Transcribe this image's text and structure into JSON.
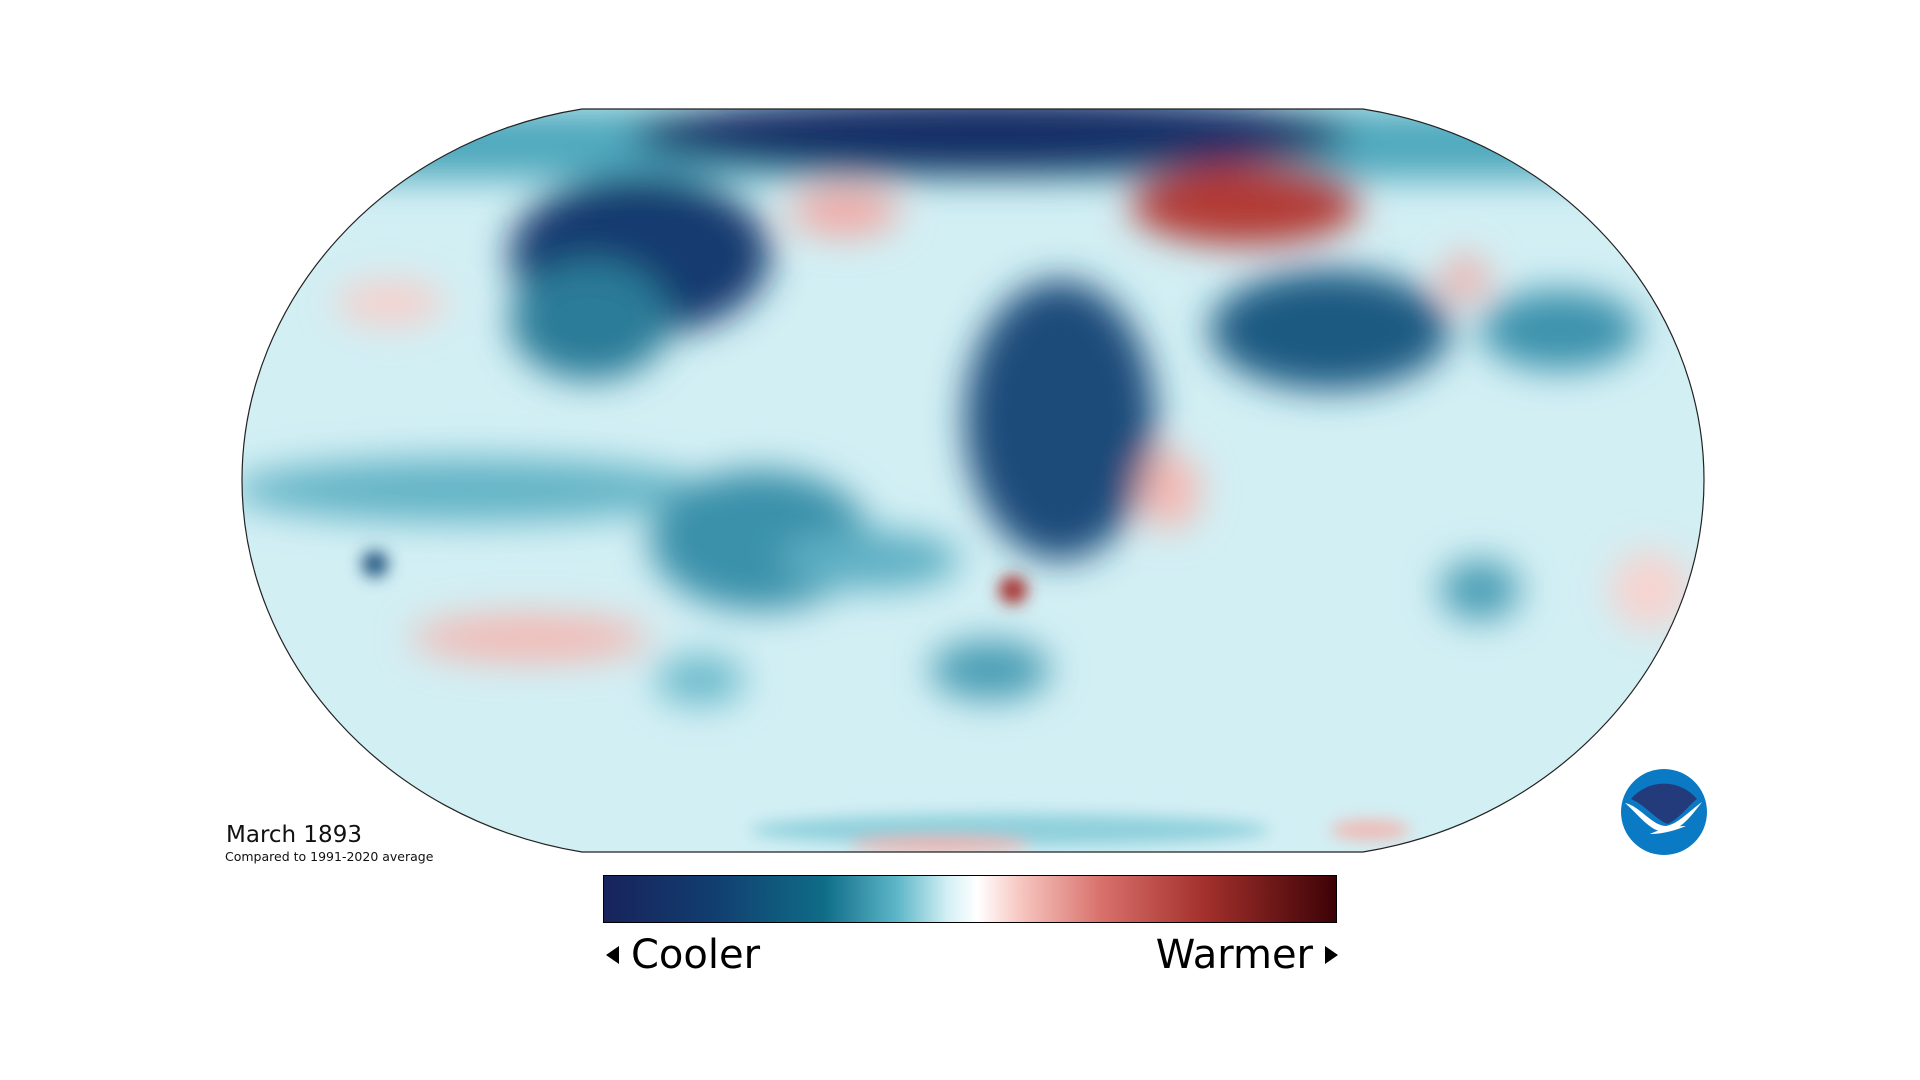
{
  "map": {
    "title": "March 1893",
    "subtitle": "Compared to 1991-2020 average",
    "type": "global temperature anomaly map",
    "projection": "Robinson"
  },
  "legend": {
    "low_label": "Cooler",
    "high_label": "Warmer",
    "colors": [
      "#18235c",
      "#0f6c87",
      "#ffffff",
      "#d8706b",
      "#3d0206"
    ]
  },
  "logo": {
    "text": "NOAA",
    "colors": {
      "top": "#233b7a",
      "bottom": "#0b7ac4"
    }
  }
}
